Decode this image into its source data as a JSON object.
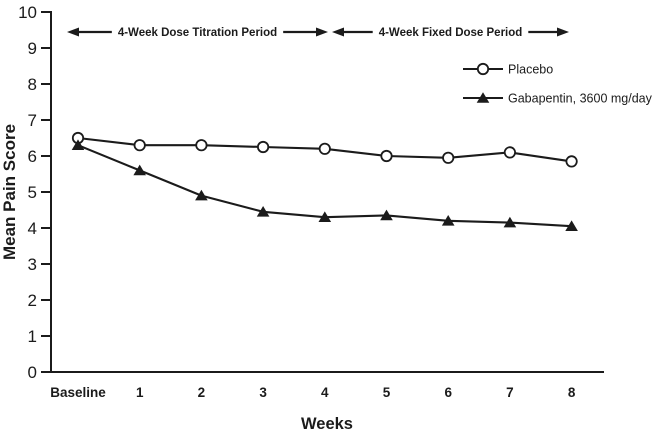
{
  "figure": {
    "background": "#ffffff",
    "ink": "#1b1b1b"
  },
  "chart_data": {
    "type": "line",
    "title": "",
    "xlabel": "Weeks",
    "ylabel": "Mean Pain Score",
    "ylim": [
      0,
      10
    ],
    "grid": false,
    "yticks": [
      "0",
      "1",
      "2",
      "3",
      "4",
      "5",
      "6",
      "7",
      "8",
      "9",
      "10"
    ],
    "categories": [
      "Baseline",
      "1",
      "2",
      "3",
      "4",
      "5",
      "6",
      "7",
      "8"
    ],
    "series": [
      {
        "name": "Placebo",
        "marker": "open-circle",
        "values": [
          6.5,
          6.3,
          6.3,
          6.25,
          6.2,
          6.0,
          5.95,
          6.1,
          5.85
        ]
      },
      {
        "name": "Gabapentin, 3600 mg/day",
        "marker": "filled-triangle",
        "values": [
          6.3,
          5.6,
          4.9,
          4.45,
          4.3,
          4.35,
          4.2,
          4.15,
          4.05
        ]
      }
    ],
    "legend": {
      "position": "upper-right"
    },
    "annotations": [
      {
        "text": "4-Week Dose Titration Period",
        "from_category": "Baseline",
        "to_category": "4"
      },
      {
        "text": "4-Week Fixed Dose Period",
        "from_category": "4",
        "to_category": "8"
      }
    ]
  }
}
